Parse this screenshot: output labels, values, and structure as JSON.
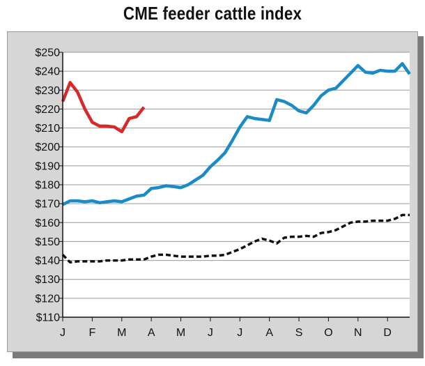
{
  "chart_data": {
    "type": "line",
    "title": "CME feeder cattle index",
    "xlabel": "",
    "ylabel": "",
    "categories": [
      "J",
      "F",
      "M",
      "A",
      "M",
      "J",
      "J",
      "A",
      "S",
      "O",
      "N",
      "D"
    ],
    "y_tick_labels": [
      "$250",
      "$240",
      "$230",
      "$220",
      "$210",
      "$200",
      "$190",
      "$180",
      "$170",
      "$160",
      "$150",
      "$140",
      "$130",
      "$120",
      "$110"
    ],
    "ylim": [
      110,
      250
    ],
    "xlim": [
      0,
      11.75
    ],
    "grid": true,
    "legend": "none",
    "series": [
      {
        "color": "#d62a2a",
        "style": "solid",
        "x": [
          0,
          0.25,
          0.5,
          0.75,
          1,
          1.25,
          1.5,
          1.75,
          2,
          2.25,
          2.5,
          2.75
        ],
        "values": [
          224,
          234,
          229,
          220,
          213,
          211,
          211,
          210.5,
          208,
          215,
          216,
          221
        ]
      },
      {
        "color": "#1a8bc4",
        "style": "solid",
        "x": [
          0,
          0.25,
          0.5,
          0.75,
          1,
          1.25,
          1.5,
          1.75,
          2,
          2.25,
          2.5,
          2.75,
          3,
          3.25,
          3.5,
          3.75,
          4,
          4.25,
          4.5,
          4.75,
          5,
          5.25,
          5.5,
          5.75,
          6,
          6.25,
          6.5,
          6.75,
          7,
          7.25,
          7.5,
          7.75,
          8,
          8.25,
          8.5,
          8.75,
          9,
          9.25,
          9.5,
          9.75,
          10,
          10.25,
          10.5,
          10.75,
          11,
          11.25,
          11.5,
          11.75
        ],
        "values": [
          169.5,
          171.5,
          171.5,
          171,
          171.5,
          170.5,
          171,
          171.5,
          171,
          172.5,
          174,
          174.5,
          178,
          178.5,
          179.5,
          179,
          178.5,
          180,
          182.5,
          185,
          189.5,
          193,
          197,
          203.5,
          210.5,
          216,
          215,
          214.5,
          214,
          225,
          224,
          222,
          219,
          218,
          222,
          227,
          230,
          231,
          235,
          239,
          243,
          239.5,
          239,
          240.5,
          240,
          240,
          244,
          238.5
        ]
      },
      {
        "color": "#111111",
        "style": "dashed",
        "x": [
          0,
          0.25,
          0.5,
          0.75,
          1,
          1.25,
          1.5,
          1.75,
          2,
          2.25,
          2.5,
          2.75,
          3,
          3.25,
          3.5,
          3.75,
          4,
          4.25,
          4.5,
          4.75,
          5,
          5.25,
          5.5,
          5.75,
          6,
          6.25,
          6.5,
          6.75,
          7,
          7.25,
          7.5,
          7.75,
          8,
          8.25,
          8.5,
          8.75,
          9,
          9.25,
          9.5,
          9.75,
          10,
          10.25,
          10.5,
          10.75,
          11,
          11.25,
          11.5,
          11.75
        ],
        "values": [
          143,
          139,
          139.5,
          139.5,
          139.5,
          139.5,
          140,
          140,
          140,
          140.5,
          140.5,
          140.5,
          142,
          143,
          143,
          142.5,
          142,
          142,
          142,
          142,
          142.5,
          142.5,
          143,
          144.5,
          146,
          148,
          150,
          151.5,
          150.5,
          149,
          152,
          152.5,
          152.5,
          153,
          152.5,
          154.5,
          155,
          156,
          158,
          160,
          160.5,
          160.5,
          161,
          161,
          161,
          162,
          164,
          164
        ]
      }
    ]
  }
}
